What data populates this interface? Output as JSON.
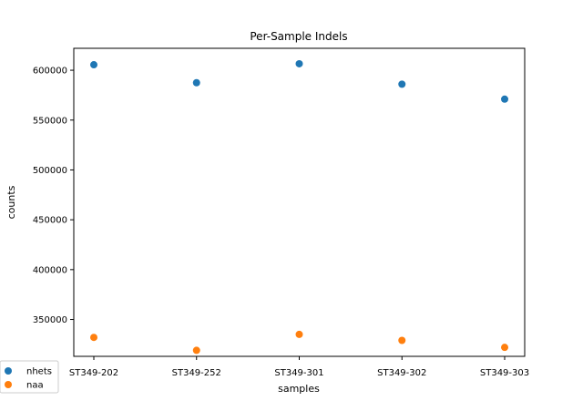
{
  "chart_data": {
    "type": "scatter",
    "title": "Per-Sample Indels",
    "xlabel": "samples",
    "ylabel": "counts",
    "categories": [
      "ST349-202",
      "ST349-252",
      "ST349-301",
      "ST349-302",
      "ST349-303"
    ],
    "ylim": [
      313000,
      622000
    ],
    "yticks": [
      350000,
      400000,
      450000,
      500000,
      550000,
      600000
    ],
    "ytick_labels": [
      "350000",
      "400000",
      "450000",
      "500000",
      "550000",
      "600000"
    ],
    "grid": false,
    "legend_position": "lower-left",
    "series": [
      {
        "name": "nhets",
        "color": "#1f77b4",
        "values": [
          605500,
          587500,
          606500,
          586000,
          571000
        ]
      },
      {
        "name": "naa",
        "color": "#ff7f0e",
        "values": [
          332000,
          319000,
          335000,
          329000,
          322000
        ]
      }
    ]
  }
}
